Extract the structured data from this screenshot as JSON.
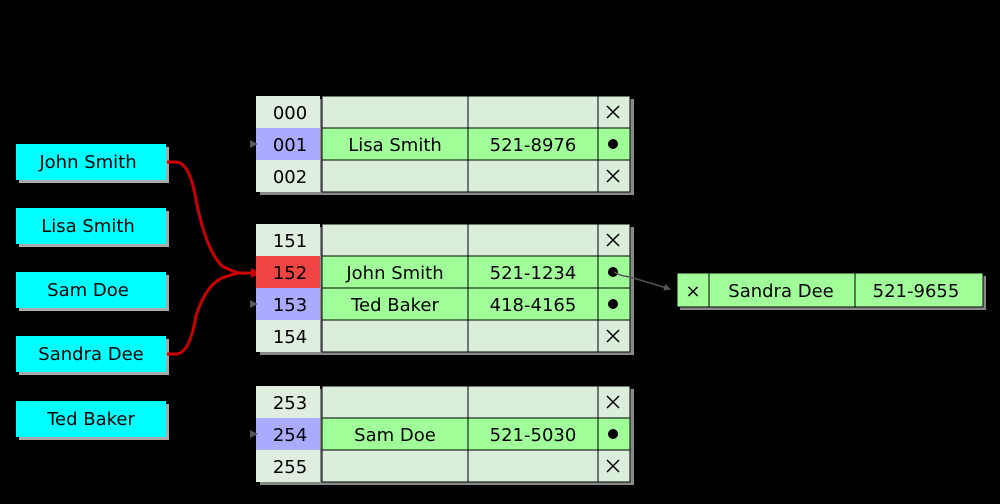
{
  "colors": {
    "key_fill": "#00ffff",
    "bucket_fill": "#e0eee0",
    "occupied_bucket": "#aaaaff",
    "highlight_bucket": "#ee4444",
    "entry_fill": "#a0ff98",
    "empty_fill": "#dbeedb",
    "link_line": "#cc0000",
    "background": "#000000"
  },
  "keys": [
    {
      "label": "John Smith"
    },
    {
      "label": "Lisa Smith"
    },
    {
      "label": "Sam Doe"
    },
    {
      "label": "Sandra Dee"
    },
    {
      "label": "Ted Baker"
    }
  ],
  "groups": [
    {
      "rows": [
        {
          "index": "000",
          "state": "empty",
          "name": "",
          "phone": "",
          "pointer": "x"
        },
        {
          "index": "001",
          "state": "occupied",
          "name": "Lisa Smith",
          "phone": "521-8976",
          "pointer": "dot"
        },
        {
          "index": "002",
          "state": "empty",
          "name": "",
          "phone": "",
          "pointer": "x"
        }
      ]
    },
    {
      "rows": [
        {
          "index": "151",
          "state": "empty",
          "name": "",
          "phone": "",
          "pointer": "x"
        },
        {
          "index": "152",
          "state": "highlight",
          "name": "John Smith",
          "phone": "521-1234",
          "pointer": "dot"
        },
        {
          "index": "153",
          "state": "occupied",
          "name": "Ted Baker",
          "phone": "418-4165",
          "pointer": "dot"
        },
        {
          "index": "154",
          "state": "empty",
          "name": "",
          "phone": "",
          "pointer": "x"
        }
      ]
    },
    {
      "rows": [
        {
          "index": "253",
          "state": "empty",
          "name": "",
          "phone": "",
          "pointer": "x"
        },
        {
          "index": "254",
          "state": "occupied",
          "name": "Sam Doe",
          "phone": "521-5030",
          "pointer": "dot"
        },
        {
          "index": "255",
          "state": "empty",
          "name": "",
          "phone": "",
          "pointer": "x"
        }
      ]
    }
  ],
  "overflow": {
    "pointer": "x",
    "name": "Sandra Dee",
    "phone": "521-9655"
  }
}
